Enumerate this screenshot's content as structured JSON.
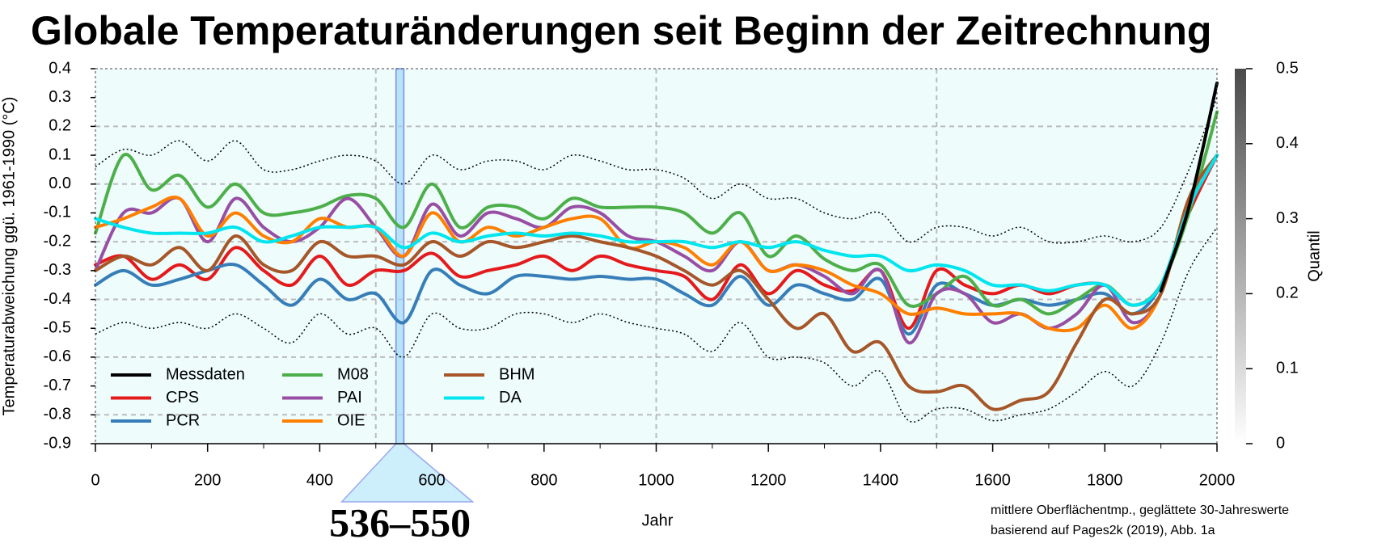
{
  "chart_data": {
    "type": "line",
    "title": "Globale Temperaturänderungen seit Beginn der Zeitrechnung",
    "xlabel": "Jahr",
    "ylabel": "Temperaturabweichung ggü. 1961-1990 (°C)",
    "footnote": [
      "mittlere Oberflächentmp., geglättete 30-Jahreswerte",
      "basierend auf Pages2k (2019), Abb. 1a"
    ],
    "xlim": [
      0,
      2000
    ],
    "ylim": [
      -0.9,
      0.4
    ],
    "xticks": [
      0,
      200,
      400,
      600,
      800,
      1000,
      1200,
      1400,
      1600,
      1800,
      2000
    ],
    "yticks": [
      0.4,
      0.3,
      0.2,
      0.1,
      {
        "value": 0,
        "label": "0.0"
      },
      -0.1,
      -0.2,
      -0.3,
      -0.4,
      -0.5,
      -0.6,
      -0.7,
      -0.8,
      -0.9
    ],
    "xgrid": [
      500,
      1000,
      1500
    ],
    "ygrid": [
      0.2,
      0,
      -0.2,
      -0.4,
      -0.6,
      -0.8
    ],
    "highlight": {
      "range": [
        536,
        550
      ],
      "label": "536–550",
      "color": "#9fd8f5"
    },
    "colorbar": {
      "label": "Quantil",
      "lim": [
        0,
        0.5
      ],
      "ticks": [
        0,
        0.1,
        0.2,
        0.3,
        0.4,
        0.5
      ]
    },
    "x": [
      0,
      50,
      100,
      150,
      200,
      250,
      300,
      350,
      400,
      450,
      500,
      550,
      600,
      650,
      700,
      750,
      800,
      850,
      900,
      950,
      1000,
      1050,
      1100,
      1150,
      1200,
      1250,
      1300,
      1350,
      1400,
      1450,
      1500,
      1550,
      1600,
      1650,
      1700,
      1750,
      1800,
      1850,
      1900,
      1950,
      2000
    ],
    "bounds": {
      "upper": [
        0.06,
        0.12,
        0.1,
        0.15,
        0.08,
        0.15,
        0.05,
        0.05,
        0.08,
        0.1,
        0.08,
        0.0,
        0.1,
        0.05,
        0.08,
        0.08,
        0.05,
        0.1,
        0.08,
        0.05,
        0.05,
        0.02,
        -0.05,
        0.0,
        -0.05,
        -0.05,
        -0.1,
        -0.12,
        -0.1,
        -0.2,
        -0.15,
        -0.15,
        -0.18,
        -0.15,
        -0.2,
        -0.2,
        -0.18,
        -0.2,
        -0.15,
        0.05,
        0.3
      ],
      "lower": [
        -0.52,
        -0.48,
        -0.5,
        -0.48,
        -0.5,
        -0.45,
        -0.5,
        -0.55,
        -0.45,
        -0.52,
        -0.5,
        -0.6,
        -0.45,
        -0.5,
        -0.5,
        -0.45,
        -0.45,
        -0.48,
        -0.45,
        -0.48,
        -0.5,
        -0.52,
        -0.58,
        -0.48,
        -0.6,
        -0.6,
        -0.62,
        -0.7,
        -0.65,
        -0.82,
        -0.78,
        -0.78,
        -0.82,
        -0.8,
        -0.78,
        -0.72,
        -0.65,
        -0.7,
        -0.55,
        -0.3,
        -0.15
      ]
    },
    "series": [
      {
        "name": "Messdaten",
        "color": "#000000",
        "values": [
          null,
          null,
          null,
          null,
          null,
          null,
          null,
          null,
          null,
          null,
          null,
          null,
          null,
          null,
          null,
          null,
          null,
          null,
          null,
          null,
          null,
          null,
          null,
          null,
          null,
          null,
          null,
          null,
          null,
          null,
          null,
          null,
          null,
          null,
          null,
          null,
          null,
          null,
          -0.37,
          -0.08,
          0.35
        ]
      },
      {
        "name": "CPS",
        "color": "#e41a1c",
        "values": [
          -0.28,
          -0.25,
          -0.33,
          -0.28,
          -0.33,
          -0.22,
          -0.3,
          -0.35,
          -0.25,
          -0.35,
          -0.3,
          -0.3,
          -0.24,
          -0.32,
          -0.3,
          -0.28,
          -0.25,
          -0.3,
          -0.25,
          -0.28,
          -0.3,
          -0.32,
          -0.4,
          -0.28,
          -0.38,
          -0.3,
          -0.35,
          -0.37,
          -0.3,
          -0.5,
          -0.3,
          -0.35,
          -0.38,
          -0.35,
          -0.38,
          -0.35,
          -0.35,
          -0.42,
          -0.35,
          -0.1,
          0.1
        ]
      },
      {
        "name": "PCR",
        "color": "#377eb8",
        "values": [
          -0.35,
          -0.3,
          -0.35,
          -0.33,
          -0.3,
          -0.28,
          -0.35,
          -0.42,
          -0.33,
          -0.4,
          -0.38,
          -0.48,
          -0.3,
          -0.35,
          -0.38,
          -0.32,
          -0.32,
          -0.33,
          -0.32,
          -0.33,
          -0.33,
          -0.38,
          -0.42,
          -0.32,
          -0.42,
          -0.35,
          -0.38,
          -0.4,
          -0.33,
          -0.52,
          -0.35,
          -0.38,
          -0.42,
          -0.4,
          -0.42,
          -0.4,
          -0.38,
          -0.45,
          -0.35,
          -0.08,
          0.1
        ]
      },
      {
        "name": "M08",
        "color": "#4daf4a",
        "values": [
          -0.17,
          0.1,
          -0.02,
          0.03,
          -0.08,
          0.0,
          -0.1,
          -0.1,
          -0.08,
          -0.04,
          -0.05,
          -0.15,
          0.0,
          -0.15,
          -0.08,
          -0.08,
          -0.12,
          -0.05,
          -0.08,
          -0.08,
          -0.08,
          -0.1,
          -0.17,
          -0.1,
          -0.25,
          -0.18,
          -0.26,
          -0.3,
          -0.28,
          -0.42,
          -0.38,
          -0.32,
          -0.42,
          -0.4,
          -0.45,
          -0.4,
          -0.35,
          -0.42,
          -0.35,
          -0.1,
          0.25
        ]
      },
      {
        "name": "PAI",
        "color": "#984ea3",
        "values": [
          -0.3,
          -0.1,
          -0.1,
          -0.05,
          -0.2,
          -0.05,
          -0.15,
          -0.2,
          -0.15,
          -0.05,
          -0.15,
          -0.25,
          -0.07,
          -0.18,
          -0.1,
          -0.12,
          -0.15,
          -0.08,
          -0.1,
          -0.18,
          -0.2,
          -0.25,
          -0.3,
          -0.2,
          -0.3,
          -0.28,
          -0.32,
          -0.38,
          -0.3,
          -0.55,
          -0.38,
          -0.38,
          -0.48,
          -0.45,
          -0.5,
          -0.45,
          -0.35,
          -0.48,
          -0.38,
          -0.05,
          0.1
        ]
      },
      {
        "name": "OIE",
        "color": "#ff7f00",
        "values": [
          -0.15,
          -0.12,
          -0.08,
          -0.05,
          -0.18,
          -0.1,
          -0.18,
          -0.2,
          -0.12,
          -0.15,
          -0.15,
          -0.25,
          -0.1,
          -0.2,
          -0.15,
          -0.18,
          -0.15,
          -0.12,
          -0.12,
          -0.22,
          -0.2,
          -0.22,
          -0.28,
          -0.2,
          -0.3,
          -0.28,
          -0.3,
          -0.35,
          -0.38,
          -0.45,
          -0.43,
          -0.45,
          -0.45,
          -0.45,
          -0.5,
          -0.5,
          -0.42,
          -0.5,
          -0.38,
          -0.05,
          0.1
        ]
      },
      {
        "name": "BHM",
        "color": "#a65628",
        "values": [
          -0.3,
          -0.25,
          -0.28,
          -0.22,
          -0.3,
          -0.18,
          -0.28,
          -0.3,
          -0.2,
          -0.25,
          -0.25,
          -0.28,
          -0.2,
          -0.25,
          -0.2,
          -0.22,
          -0.2,
          -0.18,
          -0.2,
          -0.22,
          -0.25,
          -0.3,
          -0.35,
          -0.3,
          -0.4,
          -0.5,
          -0.45,
          -0.58,
          -0.55,
          -0.7,
          -0.72,
          -0.7,
          -0.78,
          -0.75,
          -0.72,
          -0.55,
          -0.4,
          -0.45,
          -0.38,
          -0.05,
          0.1
        ]
      },
      {
        "name": "DA",
        "color": "#00e5ee",
        "values": [
          -0.12,
          -0.15,
          -0.17,
          -0.17,
          -0.17,
          -0.15,
          -0.2,
          -0.18,
          -0.15,
          -0.15,
          -0.15,
          -0.22,
          -0.17,
          -0.2,
          -0.18,
          -0.17,
          -0.18,
          -0.17,
          -0.18,
          -0.2,
          -0.2,
          -0.2,
          -0.22,
          -0.2,
          -0.22,
          -0.2,
          -0.23,
          -0.25,
          -0.25,
          -0.3,
          -0.28,
          -0.3,
          -0.35,
          -0.35,
          -0.37,
          -0.35,
          -0.35,
          -0.42,
          -0.35,
          -0.08,
          0.1
        ]
      }
    ]
  }
}
